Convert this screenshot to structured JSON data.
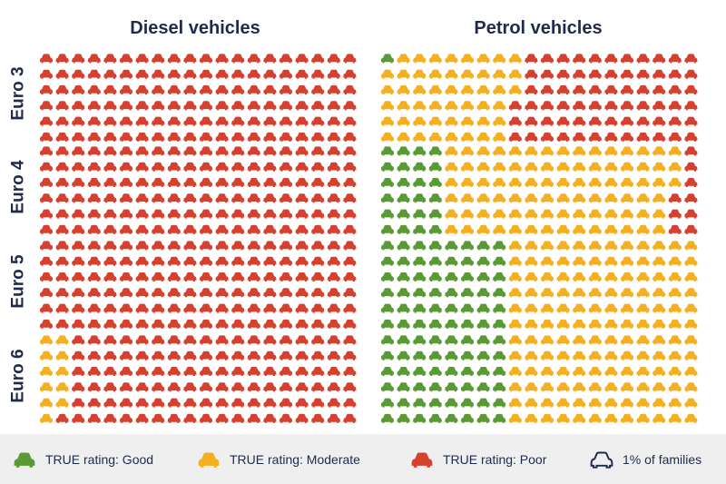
{
  "colors": {
    "good": "#5a9a35",
    "moderate": "#f5b021",
    "poor": "#d6402f",
    "outline": "#1f2a4d",
    "title": "#1f2a4d",
    "legend_bg": "#efefef"
  },
  "legend": {
    "good": "TRUE rating: Good",
    "moderate": "TRUE rating: Moderate",
    "poor": "TRUE rating: Poor",
    "unit": "1% of families"
  },
  "chart_data": {
    "type": "waffle",
    "title": "",
    "grid": {
      "rows_per_group": 6,
      "cols_per_group": 20
    },
    "panels": [
      {
        "key": "diesel",
        "title": "Diesel vehicles"
      },
      {
        "key": "petrol",
        "title": "Petrol vehicles"
      }
    ],
    "rows": [
      "Euro 3",
      "Euro 4",
      "Euro 5",
      "Euro 6"
    ],
    "categories": [
      "good",
      "moderate",
      "poor"
    ],
    "series": [
      {
        "name": "TRUE rating: Good",
        "category": "good",
        "values": {
          "diesel": [
            0,
            0,
            0,
            0
          ],
          "petrol": [
            1,
            24,
            48,
            48
          ]
        }
      },
      {
        "name": "TRUE rating: Moderate",
        "category": "moderate",
        "values": {
          "diesel": [
            0,
            0,
            0,
            11
          ],
          "petrol": [
            50,
            87,
            72,
            72
          ]
        }
      },
      {
        "name": "TRUE rating: Poor",
        "category": "poor",
        "values": {
          "diesel": [
            120,
            120,
            120,
            109
          ],
          "petrol": [
            69,
            9,
            0,
            0
          ]
        }
      }
    ],
    "unit_label": "1% of families"
  }
}
